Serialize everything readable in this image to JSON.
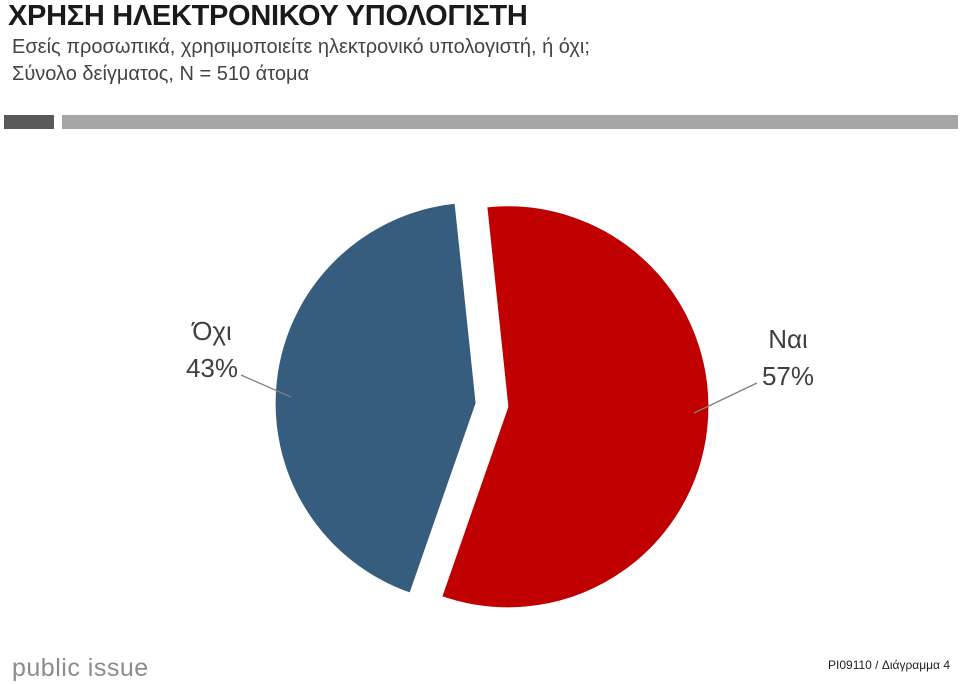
{
  "header": {
    "title": "ΧΡΗΣΗ ΗΛΕΚΤΡΟΝΙΚΟΥ ΥΠΟΛΟΓΙΣΤΗ",
    "subtitle_line1": "Εσείς προσωπικά, χρησιμοποιείτε ηλεκτρονικό υπολογιστή, ή όχι;",
    "subtitle_line2": "Σύνολο δείγματος, Ν = 510 άτομα"
  },
  "footer": {
    "logo_text": "public issue",
    "code": "PI09110 / Διάγραμμα 4"
  },
  "chart_data": {
    "type": "pie",
    "title": "",
    "categories": [
      "Ναι",
      "Όχι"
    ],
    "values": [
      57,
      43
    ],
    "value_labels": [
      "57%",
      "43%"
    ],
    "colors": [
      "#c00000",
      "#365c7e"
    ],
    "exploded": true,
    "legend": "none"
  }
}
